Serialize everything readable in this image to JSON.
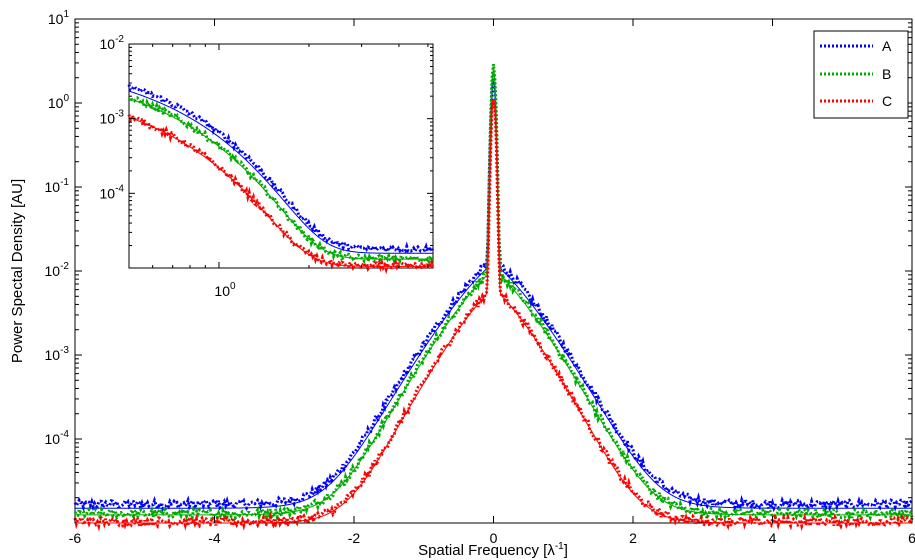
{
  "chart_data": {
    "type": "line",
    "xlabel": "Spatial Frequency [λ",
    "xlabel_sup": "-1",
    "xlabel_suffix": "]",
    "ylabel": "Power Spectal Density [AU]",
    "xlim": [
      -6,
      6
    ],
    "ylim": [
      1e-05,
      10
    ],
    "yscale": "log",
    "x_ticks": [
      -6,
      -4,
      -2,
      0,
      2,
      4,
      6
    ],
    "x_tick_labels": [
      "-6",
      "-4",
      "-2",
      "0",
      "2",
      "4",
      "6"
    ],
    "y_tick_labels": [
      {
        "value": 10,
        "base": "10",
        "exp": "1"
      },
      {
        "value": 1,
        "base": "10",
        "exp": "0"
      },
      {
        "value": 0.1,
        "base": "10",
        "exp": "-1"
      },
      {
        "value": 0.01,
        "base": "10",
        "exp": "-2"
      },
      {
        "value": 0.001,
        "base": "10",
        "exp": "-3"
      },
      {
        "value": 0.0001,
        "base": "10",
        "exp": "-4"
      }
    ],
    "legend": {
      "position": "top-right",
      "entries": [
        "A",
        "B",
        "C"
      ]
    },
    "series": [
      {
        "name": "A",
        "color": "#0000ff",
        "peak": 1.8,
        "base": 1.5e-05,
        "amp": 0.012,
        "width": 0.85
      },
      {
        "name": "B",
        "color": "#00aa00",
        "peak": 2.5,
        "base": 1.25e-05,
        "amp": 0.01,
        "width": 0.82
      },
      {
        "name": "C",
        "color": "#ff0000",
        "peak": 1.1,
        "base": 1e-05,
        "amp": 0.006,
        "width": 0.78
      }
    ],
    "inset": {
      "xscale": "log",
      "yscale": "log",
      "xlim": [
        0.5,
        5.2
      ],
      "ylim": [
        1e-05,
        0.01
      ],
      "x_tick_labels": [
        {
          "value": 1,
          "base": "10",
          "exp": "0"
        }
      ],
      "y_tick_labels": [
        {
          "value": 0.01,
          "base": "10",
          "exp": "-2"
        },
        {
          "value": 0.001,
          "base": "10",
          "exp": "-3"
        },
        {
          "value": 0.0001,
          "base": "10",
          "exp": "-4"
        }
      ]
    }
  }
}
